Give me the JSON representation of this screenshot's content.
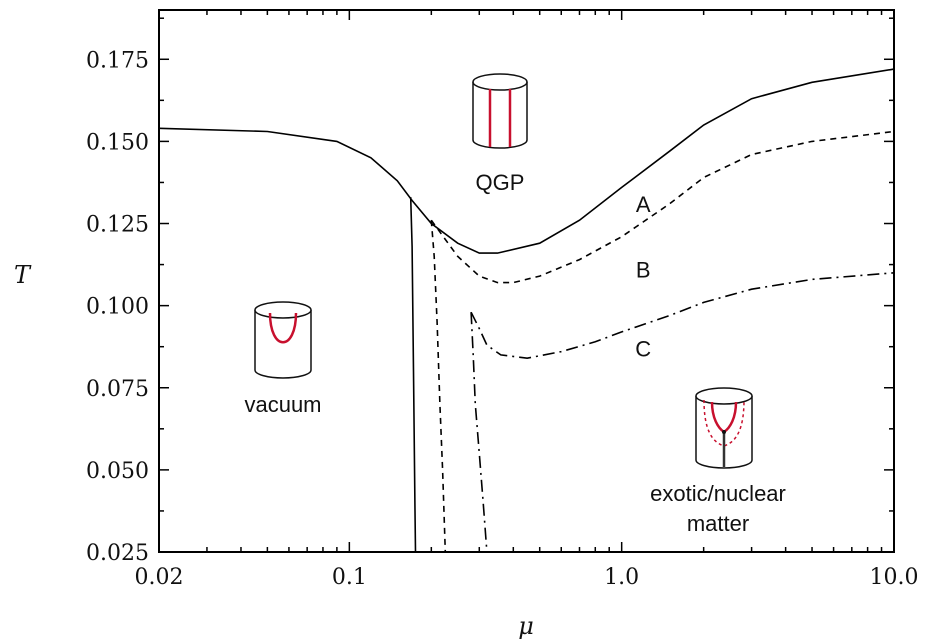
{
  "chart_data": {
    "type": "line",
    "xlabel": "μ",
    "ylabel": "T",
    "xscale": "log",
    "xlim": [
      0.02,
      10.0
    ],
    "ylim": [
      0.025,
      0.19
    ],
    "x_ticks": [
      "0.02",
      "0.1",
      "1.0",
      "10.0"
    ],
    "x_tick_values": [
      0.02,
      0.1,
      1.0,
      10.0
    ],
    "y_ticks": [
      "0.025",
      "0.050",
      "0.075",
      "0.100",
      "0.125",
      "0.150",
      "0.175"
    ],
    "y_tick_values": [
      0.025,
      0.05,
      0.075,
      0.1,
      0.125,
      0.15,
      0.175
    ],
    "series": [
      {
        "name": "A",
        "style": "solid",
        "upper": [
          [
            0.02,
            0.154
          ],
          [
            0.05,
            0.153
          ],
          [
            0.09,
            0.15
          ],
          [
            0.12,
            0.145
          ],
          [
            0.15,
            0.138
          ],
          [
            0.17,
            0.132
          ],
          [
            0.2,
            0.125
          ],
          [
            0.25,
            0.119
          ],
          [
            0.3,
            0.116
          ],
          [
            0.35,
            0.116
          ],
          [
            0.5,
            0.119
          ],
          [
            0.7,
            0.126
          ],
          [
            1.0,
            0.136
          ],
          [
            1.5,
            0.147
          ],
          [
            2.0,
            0.155
          ],
          [
            3.0,
            0.163
          ],
          [
            5.0,
            0.168
          ],
          [
            10.0,
            0.172
          ]
        ],
        "lower": [
          [
            0.168,
            0.133
          ],
          [
            0.17,
            0.118
          ],
          [
            0.172,
            0.08
          ],
          [
            0.174,
            0.04
          ],
          [
            0.175,
            0.025
          ]
        ]
      },
      {
        "name": "B",
        "style": "dashed",
        "upper": [
          [
            0.2,
            0.126
          ],
          [
            0.25,
            0.115
          ],
          [
            0.3,
            0.109
          ],
          [
            0.35,
            0.107
          ],
          [
            0.4,
            0.107
          ],
          [
            0.5,
            0.109
          ],
          [
            0.7,
            0.114
          ],
          [
            1.0,
            0.121
          ],
          [
            1.5,
            0.131
          ],
          [
            2.0,
            0.139
          ],
          [
            3.0,
            0.146
          ],
          [
            5.0,
            0.15
          ],
          [
            10.0,
            0.153
          ]
        ],
        "lower": [
          [
            0.2,
            0.126
          ],
          [
            0.205,
            0.115
          ],
          [
            0.21,
            0.095
          ],
          [
            0.215,
            0.07
          ],
          [
            0.22,
            0.05
          ],
          [
            0.225,
            0.025
          ]
        ]
      },
      {
        "name": "C",
        "style": "dash-dot",
        "upper": [
          [
            0.28,
            0.098
          ],
          [
            0.3,
            0.093
          ],
          [
            0.32,
            0.088
          ],
          [
            0.36,
            0.085
          ],
          [
            0.45,
            0.084
          ],
          [
            0.6,
            0.086
          ],
          [
            0.8,
            0.089
          ],
          [
            1.0,
            0.092
          ],
          [
            1.5,
            0.097
          ],
          [
            2.0,
            0.101
          ],
          [
            3.0,
            0.105
          ],
          [
            5.0,
            0.108
          ],
          [
            10.0,
            0.11
          ]
        ],
        "lower": [
          [
            0.28,
            0.098
          ],
          [
            0.285,
            0.085
          ],
          [
            0.29,
            0.07
          ],
          [
            0.3,
            0.055
          ],
          [
            0.31,
            0.04
          ],
          [
            0.32,
            0.025
          ]
        ]
      }
    ],
    "curve_labels": [
      {
        "text": "A",
        "x": 1.2,
        "y": 0.131
      },
      {
        "text": "B",
        "x": 1.2,
        "y": 0.111
      },
      {
        "text": "C",
        "x": 1.2,
        "y": 0.087
      }
    ],
    "region_labels": [
      {
        "id": "qgp",
        "lines": [
          "QGP"
        ]
      },
      {
        "id": "vacuum",
        "lines": [
          "vacuum"
        ]
      },
      {
        "id": "exotic",
        "lines": [
          "exotic/nuclear",
          "matter"
        ]
      }
    ],
    "grid": false,
    "legend": "none"
  },
  "colors": {
    "string_red": "#c8102e",
    "frame": "#000000"
  }
}
